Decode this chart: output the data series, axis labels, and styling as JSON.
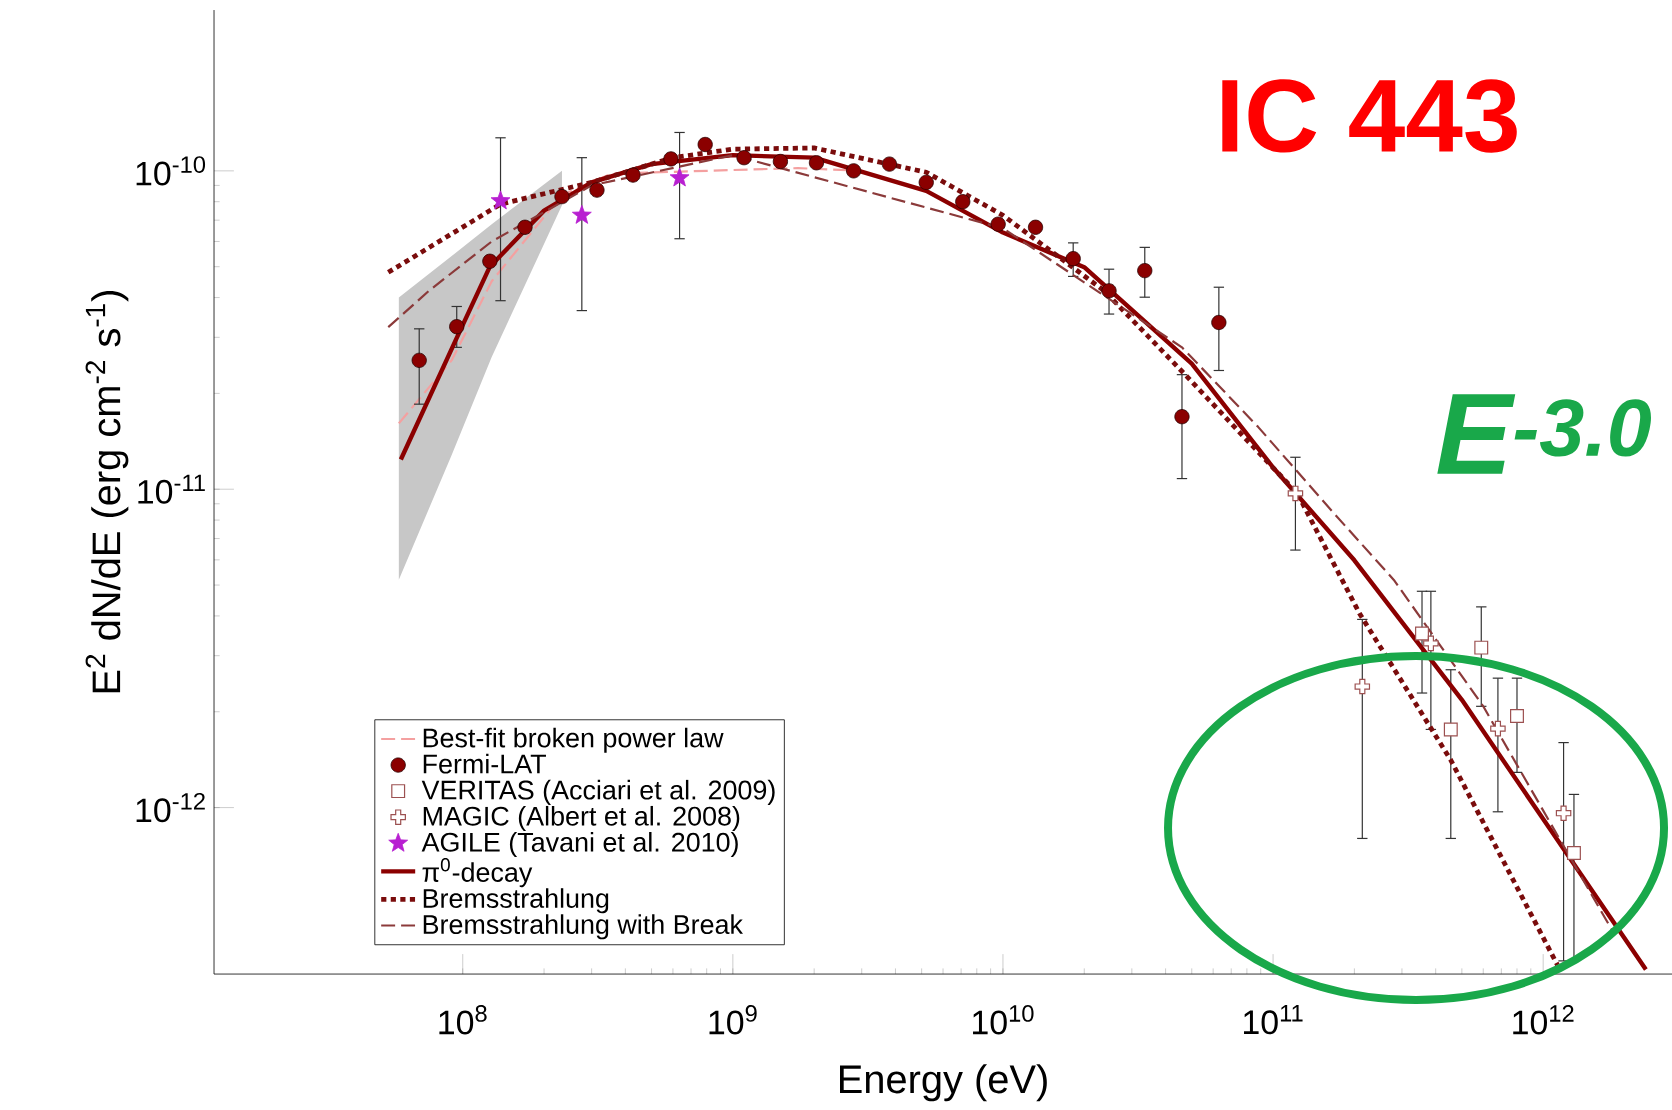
{
  "chart_data": {
    "type": "line",
    "xlabel": "Energy (eV)",
    "ylabel": "E$^{2}$ dN/dE (erg cm$^{-2}$ s$^{-1}$)",
    "log": "xy",
    "xlim": [
      12000000.0,
      3000000000000.0
    ],
    "ylim": [
      3e-13,
      3.2e-10
    ],
    "xticks": [
      {
        "value": 100000000.0,
        "label": "10$^{8}$"
      },
      {
        "value": 1000000000.0,
        "label": "10$^{9}$"
      },
      {
        "value": 10000000000.0,
        "label": "10$^{10}$"
      },
      {
        "value": 100000000000.0,
        "label": "10$^{11}$"
      },
      {
        "value": 1000000000000.0,
        "label": "10$^{12}$"
      }
    ],
    "yticks": [
      {
        "value": 1e-12,
        "label": "10$^{-12}$"
      },
      {
        "value": 1e-11,
        "label": "10$^{-11}$"
      },
      {
        "value": 1e-10,
        "label": "10$^{-10}$"
      }
    ],
    "legend": "bottom left",
    "annotations": [
      "IC 443",
      "E$^{-3.0}$"
    ],
    "series": [
      {
        "name": "Best-fit broken power law",
        "color": "#f4a0a0",
        "line_style": "dashed",
        "marker": "none",
        "x": [
          58000000.0,
          91000000.0,
          128000000.0,
          233000000.0,
          355000000.0,
          1740000000.0,
          3000000000.0
        ],
        "values": [
          1.61e-11,
          2.54e-11,
          4.5e-11,
          8.4e-11,
          9.8e-11,
          1.02e-10,
          1e-10
        ],
        "lower": [
          5.2e-12,
          1.28e-11,
          2.6e-11,
          7.8e-11,
          null,
          null,
          null
        ],
        "upper": [
          4e-11,
          5.4e-11,
          6.8e-11,
          1e-10,
          null,
          null,
          null
        ]
      },
      {
        "name": "Fermi-LAT",
        "type": "scatter",
        "color": "#8b0000",
        "marker": "circle",
        "x": [
          69000000.0,
          95000000.0,
          126000000.0,
          170000000.0,
          233000000.0,
          314000000.0,
          427000000.0,
          590000000.0,
          790000000.0,
          1100000000.0,
          1500000000.0,
          2040000000.0,
          2800000000.0,
          3800000000.0,
          5200000000.0,
          7100000000.0,
          9600000000.0,
          13200000000.0,
          18200000000.0,
          24700000000.0,
          33500000000.0,
          46000000000.0,
          63000000000.0
        ],
        "values": [
          2.54e-11,
          3.24e-11,
          5.2e-11,
          6.65e-11,
          8.3e-11,
          8.7e-11,
          9.7e-11,
          1.09e-10,
          1.21e-10,
          1.1e-10,
          1.07e-10,
          1.06e-10,
          1e-10,
          1.05e-10,
          9.2e-11,
          8e-11,
          6.8e-11,
          6.65e-11,
          5.3e-11,
          4.2e-11,
          4.86e-11,
          1.69e-11,
          3.34e-11
        ],
        "errors": [
          [
            1.85e-11,
            3.19e-11
          ],
          [
            2.79e-11,
            3.75e-11
          ],
          null,
          null,
          null,
          null,
          null,
          null,
          null,
          null,
          null,
          null,
          null,
          null,
          null,
          null,
          null,
          null,
          [
            4.66e-11,
            5.94e-11
          ],
          [
            3.55e-11,
            4.91e-11
          ],
          [
            4.01e-11,
            5.75e-11
          ],
          [
            1.08e-11,
            2.29e-11
          ],
          [
            2.36e-11,
            4.31e-11
          ]
        ]
      },
      {
        "name": "VERITAS (Acciari et al. 2009)",
        "type": "scatter",
        "color": "#9c5050",
        "marker": "square",
        "x": [
          356000000000.0,
          455000000000.0,
          590000000000.0,
          800000000000.0,
          1300000000000.0
        ],
        "values": [
          3.52e-12,
          1.76e-12,
          3.18e-12,
          1.94e-12,
          7.2e-13
        ],
        "errors": [
          [
            2.29e-12,
            4.78e-12
          ],
          [
            8e-13,
            2.71e-12
          ],
          [
            2.08e-12,
            4.27e-12
          ],
          [
            1.29e-12,
            2.55e-12
          ],
          [
            3.3e-13,
            1.1e-12
          ]
        ]
      },
      {
        "name": "MAGIC (Albert et al. 2008)",
        "type": "scatter",
        "color": "#9c5050",
        "marker": "cross",
        "x": [
          121000000000.0,
          214000000000.0,
          384000000000.0,
          680000000000.0,
          1190000000000.0
        ],
        "values": [
          9.7e-12,
          2.4e-12,
          3.28e-12,
          1.77e-12,
          9.6e-13
        ],
        "errors": [
          [
            6.44e-12,
            1.26e-11
          ],
          [
            8e-13,
            3.9e-12
          ],
          [
            1.76e-12,
            4.78e-12
          ],
          [
            9.7e-13,
            2.55e-12
          ],
          [
            3.3e-13,
            1.6e-12
          ]
        ]
      },
      {
        "name": "AGILE (Tavani et al. 2010)",
        "type": "scatter",
        "color": "#b81fd1",
        "marker": "star",
        "x": [
          138000000.0,
          276000000.0,
          635000000.0
        ],
        "values": [
          8.05e-11,
          7.25e-11,
          9.5e-11
        ],
        "errors": [
          [
            3.91e-11,
            1.27e-10
          ],
          [
            3.64e-11,
            1.1e-10
          ],
          [
            6.12e-11,
            1.32e-10
          ]
        ]
      },
      {
        "name": "π$^{0}$-decay",
        "color": "#8b0000",
        "line_style": "solid",
        "marker": "none",
        "x": [
          59000000.0,
          94000000.0,
          126000000.0,
          200000000.0,
          300000000.0,
          500000000.0,
          1000000000.0,
          2000000000.0,
          5200000000.0,
          10000000000.0,
          20000000000.0,
          50000000000.0,
          100000000000.0,
          200000000000.0,
          500000000000.0,
          1000000000000.0,
          2400000000000.0
        ],
        "values": [
          1.24e-11,
          2.93e-11,
          5e-11,
          7.5e-11,
          9.2e-11,
          1.05e-10,
          1.12e-10,
          1.1e-10,
          8.65e-11,
          6.4e-11,
          4.98e-11,
          2.48e-11,
          1.17e-11,
          5.98e-12,
          2.18e-12,
          9.2e-13,
          3.1e-13
        ]
      },
      {
        "name": "Bremsstrahlung",
        "color": "#7a0c0c",
        "line_style": "dotted",
        "marker": "none",
        "x": [
          53000000.0,
          138000000.0,
          300000000.0,
          600000000.0,
          1000000000.0,
          2000000000.0,
          5200000000.0,
          10000000000.0,
          23700000000.0,
          46800000000.0,
          123000000000.0,
          209000000000.0,
          455000000000.0,
          1130000000000.0
        ],
        "values": [
          4.8e-11,
          7.86e-11,
          9.2e-11,
          1.1e-10,
          1.17e-10,
          1.18e-10,
          9.9e-11,
          7.25e-11,
          4.2e-11,
          2.31e-11,
          9.7e-12,
          4.07e-12,
          1.41e-12,
          3.2e-13
        ]
      },
      {
        "name": "Bremsstrahlung with Break",
        "color": "#8b3a3a",
        "line_style": "dashed",
        "marker": "none",
        "x": [
          53000000.0,
          75000000.0,
          128000000.0,
          300000000.0,
          1000000000.0,
          10000000000.0,
          46000000000.0,
          88000000000.0,
          168000000000.0,
          280000000000.0,
          600000000000.0,
          1820000000000.0
        ],
        "values": [
          3.23e-11,
          4.2e-11,
          6e-11,
          9e-11,
          1.12e-10,
          6.6e-11,
          2.79e-11,
          1.57e-11,
          8.4e-12,
          5.19e-12,
          2.08e-12,
          4.05e-13
        ]
      }
    ]
  }
}
